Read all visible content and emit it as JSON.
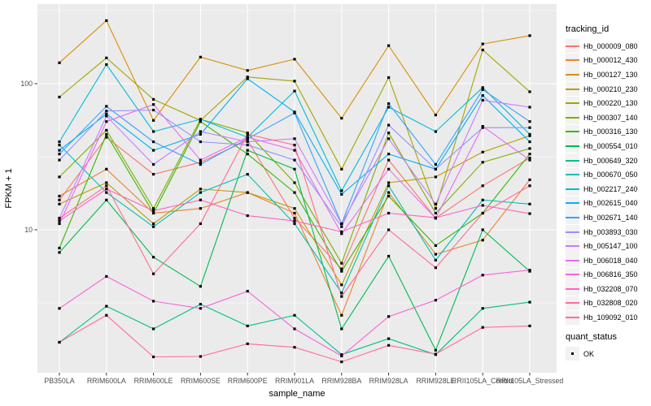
{
  "style": {
    "figure_background": "#FFFFFF",
    "panel_background": "#EBEBEB",
    "grid_color": "#FFFFFF",
    "axis_text_color": "#4D4D4D",
    "tick_mark_color": "#333333",
    "point_color": "#000000",
    "legend_key_background": "#F2F2F2"
  },
  "chart_data": {
    "type": "line",
    "title": "",
    "xlabel": "sample_name",
    "ylabel": "FPKM + 1",
    "y_scale": "log10",
    "ylim": [
      1.05,
      335
    ],
    "y_ticks": [
      10,
      100
    ],
    "y_tick_labels": [
      "10",
      "100"
    ],
    "y_minor_gridlines": [
      3.162,
      31.623,
      316.228
    ],
    "grid": "major and minor white gridlines on grey panel",
    "legend_title": "tracking_id",
    "legend_position": "right",
    "marker": "black square (quant_status OK)",
    "categories": [
      "PB350LA",
      "RRIM600LA",
      "RRIM600LE",
      "RRIM600SE",
      "RRIM600PE",
      "RRIM901LA",
      "RRIM928BA",
      "RRIM928LA",
      "RRIM928LE",
      "RRII105LA_Control",
      "RRII105LA_Stressed"
    ],
    "series": [
      {
        "name": "Hb_000009_080",
        "color": "#F8766D",
        "values": [
          16,
          43,
          24,
          29,
          41,
          12,
          5.4,
          30,
          12,
          20,
          31
        ]
      },
      {
        "name": "Hb_000012_430",
        "color": "#EA8331",
        "values": [
          17,
          26,
          13,
          14,
          18,
          13,
          2.6,
          18,
          6.8,
          8.5,
          22
        ]
      },
      {
        "name": "Hb_000127_130",
        "color": "#D89000",
        "values": [
          139,
          270,
          56,
          152,
          123,
          147,
          58,
          182,
          61,
          187,
          213
        ]
      },
      {
        "name": "Hb_000210_230",
        "color": "#C09B00",
        "values": [
          15,
          21,
          11,
          19,
          18,
          14,
          4.2,
          21,
          23,
          34,
          44
        ]
      },
      {
        "name": "Hb_000220_130",
        "color": "#A3A500",
        "values": [
          81,
          150,
          78,
          56,
          111,
          104,
          26,
          110,
          14,
          170,
          88
        ]
      },
      {
        "name": "Hb_000307_140",
        "color": "#7CAE00",
        "values": [
          23,
          48,
          14,
          57,
          46,
          21,
          5.9,
          46,
          13,
          29,
          36
        ]
      },
      {
        "name": "Hb_000316_130",
        "color": "#39B600",
        "values": [
          7.5,
          45,
          13,
          55,
          33,
          18,
          5.2,
          17,
          7.8,
          13,
          33
        ]
      },
      {
        "name": "Hb_000554_010",
        "color": "#00BB4E",
        "values": [
          7,
          16,
          6.5,
          4.1,
          35,
          26,
          2.1,
          6.6,
          1.5,
          10,
          5.2
        ]
      },
      {
        "name": "Hb_000649_320",
        "color": "#00C087",
        "values": [
          1.7,
          3.0,
          2.1,
          3.1,
          2.2,
          2.6,
          1.4,
          1.8,
          1.4,
          2.9,
          3.2
        ]
      },
      {
        "name": "Hb_000670_050",
        "color": "#00C0B4",
        "values": [
          38,
          18,
          10.5,
          18,
          24,
          11,
          3.7,
          20,
          6.2,
          16,
          15
        ]
      },
      {
        "name": "Hb_002217_240",
        "color": "#00BCD8",
        "values": [
          40,
          135,
          47,
          57,
          43,
          89,
          18.5,
          69,
          47,
          94,
          45
        ]
      },
      {
        "name": "Hb_002615_040",
        "color": "#00B0F6",
        "values": [
          35,
          62,
          35,
          45,
          108,
          64,
          17.5,
          33,
          26,
          83,
          40
        ]
      },
      {
        "name": "Hb_002671_140",
        "color": "#35A2FF",
        "values": [
          33,
          70,
          40,
          28,
          42,
          63,
          11,
          73,
          28,
          91,
          55
        ]
      },
      {
        "name": "Hb_003893_030",
        "color": "#9590FF",
        "values": [
          30,
          65,
          66,
          40,
          38,
          30,
          10.5,
          52,
          26,
          50,
          50
        ]
      },
      {
        "name": "Hb_005147_100",
        "color": "#C77CFF",
        "values": [
          12,
          60,
          28,
          47,
          40,
          42,
          11,
          42,
          15,
          77,
          69
        ]
      },
      {
        "name": "Hb_006018_040",
        "color": "#E76BF3",
        "values": [
          11,
          55,
          72,
          30,
          43,
          35,
          9.4,
          26,
          12,
          51,
          30
        ]
      },
      {
        "name": "Hb_006816_350",
        "color": "#FA62DB",
        "values": [
          2.9,
          4.8,
          3.25,
          2.9,
          3.8,
          2.1,
          1.37,
          2.55,
          3.3,
          4.9,
          5.3
        ]
      },
      {
        "name": "Hb_032208_070",
        "color": "#FF61C7",
        "values": [
          11.5,
          19,
          13.5,
          16,
          12.5,
          11.5,
          9.7,
          13,
          12.1,
          14.7,
          12.9
        ]
      },
      {
        "name": "Hb_032808_020",
        "color": "#FF689E",
        "values": [
          1.7,
          2.6,
          1.35,
          1.36,
          1.66,
          1.57,
          1.25,
          1.62,
          1.41,
          2.15,
          2.2
        ]
      },
      {
        "name": "Hb_109092_010",
        "color": "#FF6C90",
        "values": [
          12,
          20,
          5,
          11,
          45,
          38,
          3.5,
          10,
          5.5,
          13,
          20
        ]
      }
    ]
  },
  "quant_status_legend": {
    "title": "quant_status",
    "items": [
      {
        "label": "OK"
      }
    ]
  }
}
